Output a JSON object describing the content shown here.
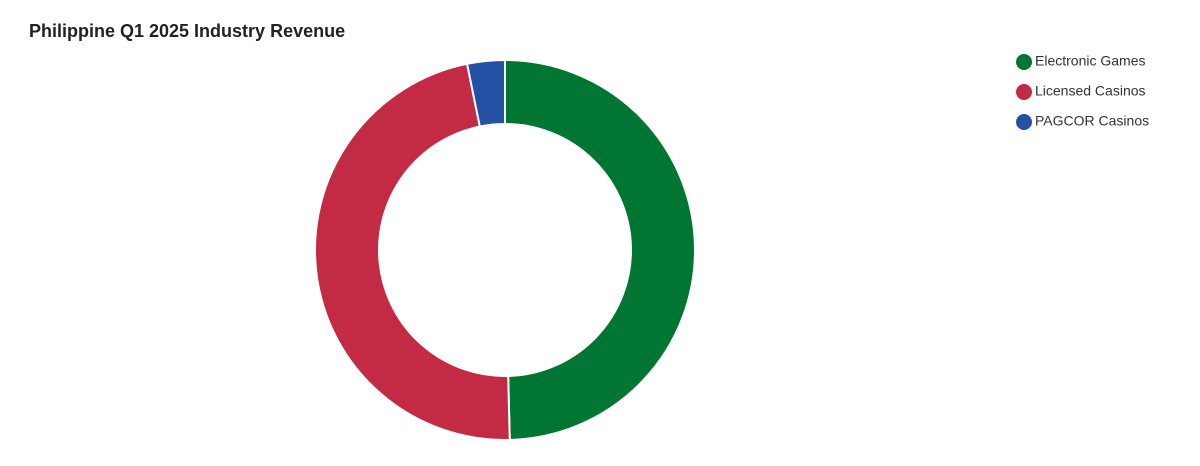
{
  "chart_data": {
    "type": "donut",
    "title": "Philippine Q1 2025 Industry Revenue",
    "categories": [
      "Electronic Games",
      "Licensed Casinos",
      "PAGCOR Casinos"
    ],
    "values": [
      49.6,
      47.2,
      3.2
    ],
    "colors": [
      "#007632",
      "#c32a43",
      "#2451a3"
    ],
    "legend": "top-right"
  }
}
